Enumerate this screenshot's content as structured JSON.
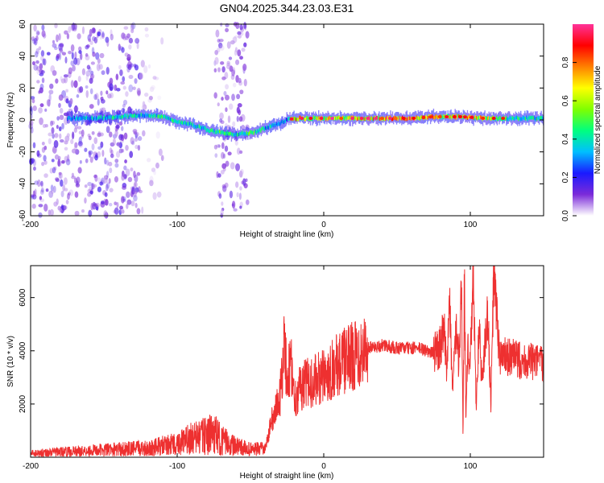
{
  "title": "GN04.2025.344.23.03.E31",
  "chart_data": [
    {
      "type": "heatmap",
      "name": "spectrogram",
      "xlabel": "Height of straight line (km)",
      "ylabel": "Frequency (Hz)",
      "xlim": [
        -200,
        150
      ],
      "ylim": [
        -60,
        60
      ],
      "x_ticks": [
        -200,
        -100,
        0,
        100
      ],
      "y_ticks": [
        -60,
        -40,
        -20,
        0,
        20,
        40,
        60
      ],
      "colorbar": {
        "label": "Normalized spectral amplitude",
        "range": [
          0.0,
          1.0
        ],
        "ticks": [
          0.0,
          0.2,
          0.4,
          0.6,
          0.8
        ],
        "tick_labels": [
          "0.0",
          "0.2",
          "0.4",
          "0.6",
          "0.8"
        ],
        "colors": [
          "#ffffff",
          "#7b2bd9",
          "#1a1aff",
          "#00bfff",
          "#00ff7f",
          "#7fff00",
          "#ffff00",
          "#ff8000",
          "#ff0000",
          "#ff3399"
        ]
      },
      "ridge": [
        {
          "x": -175,
          "f": 1,
          "a": 0.35
        },
        {
          "x": -160,
          "f": 1,
          "a": 0.4
        },
        {
          "x": -140,
          "f": 2,
          "a": 0.45
        },
        {
          "x": -120,
          "f": 3,
          "a": 0.45
        },
        {
          "x": -110,
          "f": 2,
          "a": 0.5
        },
        {
          "x": -100,
          "f": -1,
          "a": 0.45
        },
        {
          "x": -90,
          "f": -3,
          "a": 0.5
        },
        {
          "x": -80,
          "f": -6,
          "a": 0.45
        },
        {
          "x": -70,
          "f": -8,
          "a": 0.5
        },
        {
          "x": -60,
          "f": -9,
          "a": 0.45
        },
        {
          "x": -50,
          "f": -8,
          "a": 0.55
        },
        {
          "x": -45,
          "f": -7,
          "a": 0.5
        },
        {
          "x": -40,
          "f": -5,
          "a": 0.45
        },
        {
          "x": -30,
          "f": -2,
          "a": 0.4
        },
        {
          "x": -25,
          "f": 0,
          "a": 0.35
        },
        {
          "x": -20,
          "f": 1,
          "a": 0.85
        },
        {
          "x": -10,
          "f": 1,
          "a": 0.6
        },
        {
          "x": 0,
          "f": 1,
          "a": 0.75
        },
        {
          "x": 10,
          "f": 1,
          "a": 0.65
        },
        {
          "x": 20,
          "f": 1,
          "a": 0.8
        },
        {
          "x": 30,
          "f": 1,
          "a": 0.75
        },
        {
          "x": 40,
          "f": 1,
          "a": 0.9
        },
        {
          "x": 60,
          "f": 1,
          "a": 0.95
        },
        {
          "x": 75,
          "f": 2,
          "a": 0.85
        },
        {
          "x": 85,
          "f": 2,
          "a": 0.7
        },
        {
          "x": 95,
          "f": 2,
          "a": 0.8
        },
        {
          "x": 110,
          "f": 1,
          "a": 0.75
        },
        {
          "x": 120,
          "f": 1,
          "a": 0.5
        },
        {
          "x": 150,
          "f": 1,
          "a": 0.45
        }
      ],
      "noise_bands": [
        {
          "x_from": -200,
          "x_to": -125,
          "level": 0.3
        },
        {
          "x_from": -125,
          "x_to": -110,
          "level": 0.1
        },
        {
          "x_from": -75,
          "x_to": -52,
          "level": 0.25
        }
      ]
    },
    {
      "type": "line",
      "name": "snr",
      "xlabel": "Height of straight line (km)",
      "ylabel": "SNR (10 * v/v)",
      "xlim": [
        -200,
        150
      ],
      "ylim": [
        0,
        7200
      ],
      "x_ticks": [
        -200,
        -100,
        0,
        100
      ],
      "y_ticks": [
        2000,
        4000,
        6000
      ],
      "color": "#ee3030",
      "series": [
        {
          "name": "SNR",
          "x": [
            -200,
            -180,
            -160,
            -140,
            -120,
            -100,
            -90,
            -80,
            -75,
            -70,
            -60,
            -50,
            -40,
            -35,
            -30,
            -27,
            -25,
            -22,
            -20,
            -15,
            -10,
            -5,
            0,
            5,
            10,
            15,
            20,
            25,
            30,
            40,
            50,
            60,
            65,
            70,
            75,
            80,
            82,
            84,
            86,
            88,
            90,
            92,
            94,
            95,
            96,
            97,
            98,
            100,
            102,
            104,
            106,
            108,
            110,
            112,
            114,
            116,
            120,
            130,
            140,
            150
          ],
          "y": [
            150,
            200,
            250,
            300,
            350,
            500,
            700,
            800,
            900,
            650,
            400,
            300,
            300,
            1500,
            2200,
            4200,
            3000,
            3500,
            2200,
            2700,
            2800,
            2900,
            3000,
            3300,
            3500,
            3650,
            3800,
            4000,
            4100,
            4200,
            4100,
            4100,
            4100,
            4000,
            3900,
            4200,
            5200,
            3200,
            5800,
            2400,
            4800,
            3600,
            6500,
            800,
            7100,
            1500,
            4000,
            3600,
            6800,
            2000,
            4800,
            2800,
            4200,
            5500,
            1900,
            6900,
            3800,
            3700,
            3600,
            3500
          ]
        }
      ]
    }
  ]
}
